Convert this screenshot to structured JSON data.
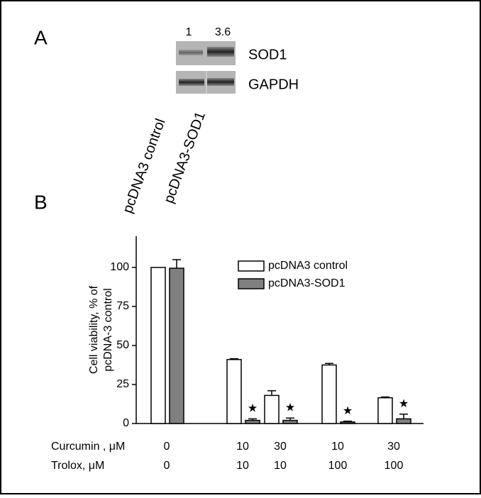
{
  "panel_a": {
    "label": "A",
    "band_ratios": [
      1,
      3.6
    ],
    "bands": [
      "SOD1",
      "GAPDH"
    ],
    "lanes": [
      "pcDNA3 control",
      "pcDNA3-SOD1"
    ]
  },
  "chart_data": {
    "type": "bar",
    "panel_label": "B",
    "ylabel": [
      "Cell viability, % of",
      "pcDNA-3 control"
    ],
    "category_rows": [
      {
        "label": "Curcumin , μM",
        "values": [
          0,
          10,
          30,
          10,
          30
        ]
      },
      {
        "label": "Trolox, μM",
        "values": [
          0,
          10,
          10,
          100,
          100
        ]
      }
    ],
    "series": [
      {
        "name": "pcDNA3 control",
        "color": "#ffffff",
        "values": [
          100,
          41,
          18,
          37.5,
          16.5
        ],
        "errors": [
          0,
          0.5,
          3,
          1,
          0.5
        ]
      },
      {
        "name": "pcDNA3-SOD1",
        "color": "#808080",
        "values": [
          99.5,
          2,
          2,
          1,
          3
        ],
        "errors": [
          5.5,
          1,
          1.5,
          0.5,
          3
        ],
        "significance": [
          null,
          "★",
          "★",
          "★",
          "★"
        ]
      }
    ],
    "ylim": [
      0,
      120
    ],
    "yticks": [
      0,
      25,
      50,
      75,
      100
    ],
    "legend": "upper right"
  }
}
